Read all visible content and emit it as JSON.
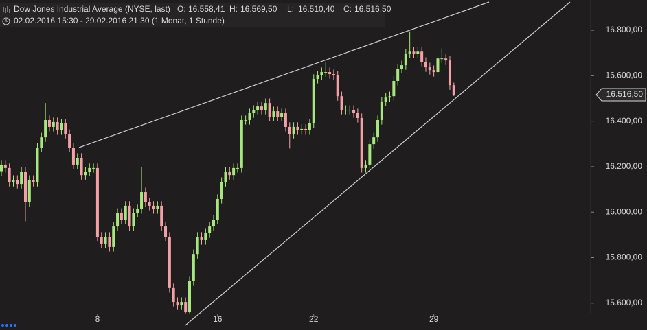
{
  "chart_data": {
    "type": "candlestick",
    "title": "Dow Jones Industrial Average (NYSE, last)",
    "subtitle": "02.02.2016 15:30 - 29.02.2016 21:30 (1 Monat, 1 Stunde)",
    "ohlc_legend": [
      {
        "key": "O:",
        "label": "16.558,41"
      },
      {
        "key": "H:",
        "label": "16.569,50"
      },
      {
        "key": "L:",
        "label": "16.510,40"
      },
      {
        "key": "C:",
        "label": "16.516,50"
      }
    ],
    "last_label": "16.516,50",
    "categories": [
      null,
      null,
      null,
      null,
      null,
      null,
      null,
      null,
      null,
      null,
      null,
      null,
      null,
      null,
      null,
      null,
      null,
      null,
      null,
      null,
      null,
      null,
      null,
      null,
      "8",
      null,
      null,
      null,
      null,
      null,
      null,
      null,
      null,
      null,
      null,
      null,
      null,
      null,
      null,
      null,
      null,
      null,
      null,
      null,
      null,
      null,
      null,
      null,
      null,
      null,
      null,
      null,
      null,
      null,
      "16",
      null,
      null,
      null,
      null,
      null,
      null,
      null,
      null,
      null,
      null,
      null,
      null,
      null,
      null,
      null,
      null,
      null,
      null,
      null,
      null,
      null,
      null,
      null,
      "22",
      null,
      null,
      null,
      null,
      null,
      null,
      null,
      null,
      null,
      null,
      null,
      null,
      null,
      null,
      null,
      null,
      null,
      null,
      null,
      null,
      null,
      null,
      null,
      null,
      null,
      null,
      null,
      null,
      null,
      "29",
      null,
      null,
      null,
      null,
      null
    ],
    "series": [
      {
        "up_color": "#a8e67e",
        "down_color": "#f3a0a6",
        "open": [
          16180,
          16209,
          16194,
          16133,
          16142,
          16124,
          16178,
          16043,
          16142,
          16133,
          16284,
          16329,
          16405,
          16375,
          16396,
          16360,
          16390,
          16344,
          16284,
          16209,
          16239,
          16163,
          16178,
          16194,
          16194,
          15892,
          15862,
          15892,
          15847,
          15937,
          15997,
          15967,
          16028,
          15937,
          15997,
          16013,
          16088,
          16043,
          16028,
          16013,
          16028,
          15937,
          15892,
          15666,
          15605,
          15590,
          15605,
          15560,
          15696,
          15816,
          15892,
          15877,
          15907,
          15937,
          15967,
          16058,
          16133,
          16178,
          16163,
          16194,
          16194,
          16405,
          16405,
          16435,
          16450,
          16465,
          16450,
          16480,
          16420,
          16444,
          16420,
          16435,
          16375,
          16344,
          16375,
          16360,
          16366,
          16360,
          16390,
          16586,
          16601,
          16616,
          16616,
          16607,
          16601,
          16510,
          16450,
          16450,
          16450,
          16435,
          16414,
          16194,
          16209,
          16299,
          16329,
          16405,
          16486,
          16504,
          16510,
          16577,
          16631,
          16646,
          16697,
          16706,
          16697,
          16706,
          16661,
          16637,
          16625,
          16616,
          16676,
          16676,
          16667,
          16558.41
        ],
        "high": [
          16229,
          16229,
          16214,
          16162,
          16162,
          16198,
          16198,
          16162,
          16162,
          16304,
          16349,
          16480,
          16425,
          16416,
          16416,
          16410,
          16410,
          16364,
          16304,
          16259,
          16259,
          16198,
          16214,
          16214,
          16214,
          15912,
          15912,
          15912,
          15957,
          16017,
          16017,
          16048,
          16048,
          16017,
          16033,
          16200,
          16108,
          16063,
          16048,
          16048,
          16048,
          15957,
          15912,
          15686,
          15625,
          15625,
          15625,
          15716,
          15836,
          15912,
          15912,
          15927,
          15957,
          15987,
          16078,
          16153,
          16198,
          16198,
          16214,
          16214,
          16425,
          16425,
          16455,
          16470,
          16485,
          16485,
          16500,
          16500,
          16464,
          16464,
          16455,
          16455,
          16395,
          16395,
          16395,
          16386,
          16386,
          16410,
          16606,
          16621,
          16636,
          16660,
          16636,
          16627,
          16621,
          16530,
          16470,
          16470,
          16470,
          16455,
          16434,
          16229,
          16319,
          16349,
          16425,
          16506,
          16524,
          16530,
          16597,
          16651,
          16666,
          16717,
          16795,
          16726,
          16726,
          16726,
          16681,
          16657,
          16645,
          16696,
          16720,
          16696,
          16687,
          16569.5
        ],
        "low": [
          16160,
          16174,
          16113,
          16113,
          16104,
          16104,
          15960,
          16023,
          16113,
          16113,
          16264,
          16309,
          16355,
          16355,
          16340,
          16340,
          16324,
          16264,
          16189,
          16189,
          16143,
          16143,
          16158,
          16174,
          15872,
          15842,
          15842,
          15827,
          15827,
          15917,
          15947,
          15947,
          15917,
          15917,
          15977,
          15993,
          16023,
          16008,
          15993,
          15993,
          15917,
          15872,
          15646,
          15585,
          15570,
          15570,
          15555,
          15555,
          15676,
          15796,
          15857,
          15857,
          15887,
          15917,
          15947,
          16038,
          16113,
          16143,
          16143,
          16174,
          16174,
          16385,
          16385,
          16415,
          16430,
          16430,
          16430,
          16400,
          16400,
          16400,
          16400,
          16355,
          16280,
          16324,
          16340,
          16340,
          16340,
          16340,
          16370,
          16566,
          16581,
          16596,
          16587,
          16581,
          16490,
          16430,
          16430,
          16430,
          16415,
          16394,
          16174,
          16174,
          16189,
          16279,
          16309,
          16385,
          16466,
          16484,
          16490,
          16557,
          16611,
          16626,
          16677,
          16677,
          16677,
          16641,
          16617,
          16605,
          16596,
          16596,
          16656,
          16647,
          16538,
          16510.4
        ],
        "close": [
          16209,
          16194,
          16133,
          16142,
          16124,
          16178,
          16043,
          16142,
          16133,
          16284,
          16329,
          16405,
          16375,
          16396,
          16360,
          16390,
          16344,
          16284,
          16209,
          16239,
          16163,
          16178,
          16194,
          16194,
          15892,
          15862,
          15892,
          15847,
          15937,
          15997,
          15967,
          16028,
          15937,
          15997,
          16013,
          16088,
          16043,
          16028,
          16013,
          16028,
          15937,
          15892,
          15666,
          15605,
          15590,
          15605,
          15560,
          15696,
          15816,
          15892,
          15877,
          15907,
          15937,
          15967,
          16058,
          16133,
          16178,
          16163,
          16194,
          16194,
          16405,
          16405,
          16435,
          16450,
          16465,
          16450,
          16480,
          16420,
          16444,
          16420,
          16435,
          16375,
          16344,
          16375,
          16360,
          16366,
          16360,
          16390,
          16586,
          16601,
          16616,
          16616,
          16607,
          16601,
          16510,
          16450,
          16450,
          16450,
          16435,
          16414,
          16194,
          16209,
          16299,
          16329,
          16405,
          16486,
          16504,
          16510,
          16577,
          16631,
          16646,
          16697,
          16706,
          16697,
          16706,
          16661,
          16637,
          16625,
          16616,
          16676,
          16676,
          16667,
          16558.41,
          16516.5
        ]
      }
    ],
    "ylim": [
      15551,
      16933
    ],
    "yticks": [
      {
        "value": 15600,
        "label": "15.600,00"
      },
      {
        "value": 15800,
        "label": "15.800,00"
      },
      {
        "value": 16000,
        "label": "16.000,00"
      },
      {
        "value": 16200,
        "label": "16.200,00"
      },
      {
        "value": 16400,
        "label": "16.400,00"
      },
      {
        "value": 16600,
        "label": "16.600,00"
      },
      {
        "value": 16800,
        "label": "16.800,00"
      }
    ]
  }
}
